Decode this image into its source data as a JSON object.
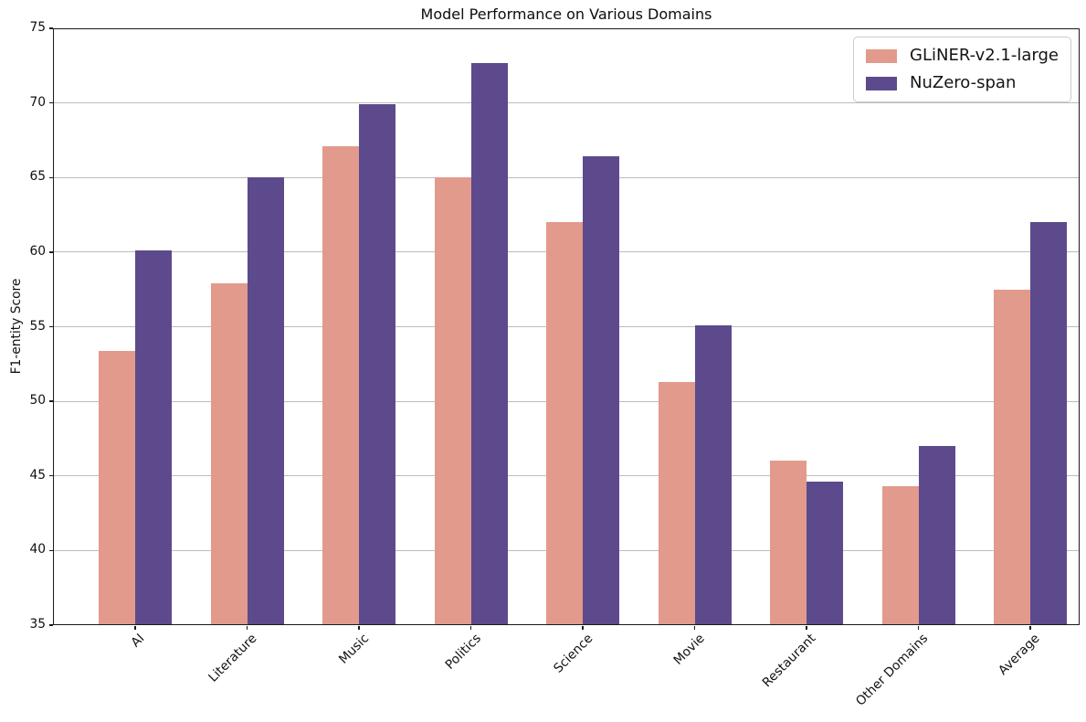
{
  "chart_data": {
    "type": "bar",
    "title": "Model Performance on Various Domains",
    "xlabel": "",
    "ylabel": "F1-entity Score",
    "categories": [
      "AI",
      "Literature",
      "Music",
      "Politics",
      "Science",
      "Movie",
      "Restaurant",
      "Other Domains",
      "Average"
    ],
    "series": [
      {
        "name": "GLiNER-v2.1-large",
        "color": "#e29a8d",
        "values": [
          53.4,
          57.9,
          67.1,
          65.0,
          62.0,
          51.3,
          46.0,
          44.3,
          57.5
        ]
      },
      {
        "name": "NuZero-span",
        "color": "#5c4a8c",
        "values": [
          60.1,
          65.0,
          69.9,
          72.7,
          66.4,
          55.1,
          44.6,
          47.0,
          62.0
        ]
      }
    ],
    "ylim": [
      35,
      75
    ],
    "yticks": [
      35,
      40,
      45,
      50,
      55,
      60,
      65,
      70,
      75
    ],
    "x_tick_rotation": 45,
    "grid": true,
    "legend_position": "upper right",
    "grid_color": "#bcbcbc",
    "spine_color": "#1a1a1a",
    "text_color": "#111111"
  }
}
